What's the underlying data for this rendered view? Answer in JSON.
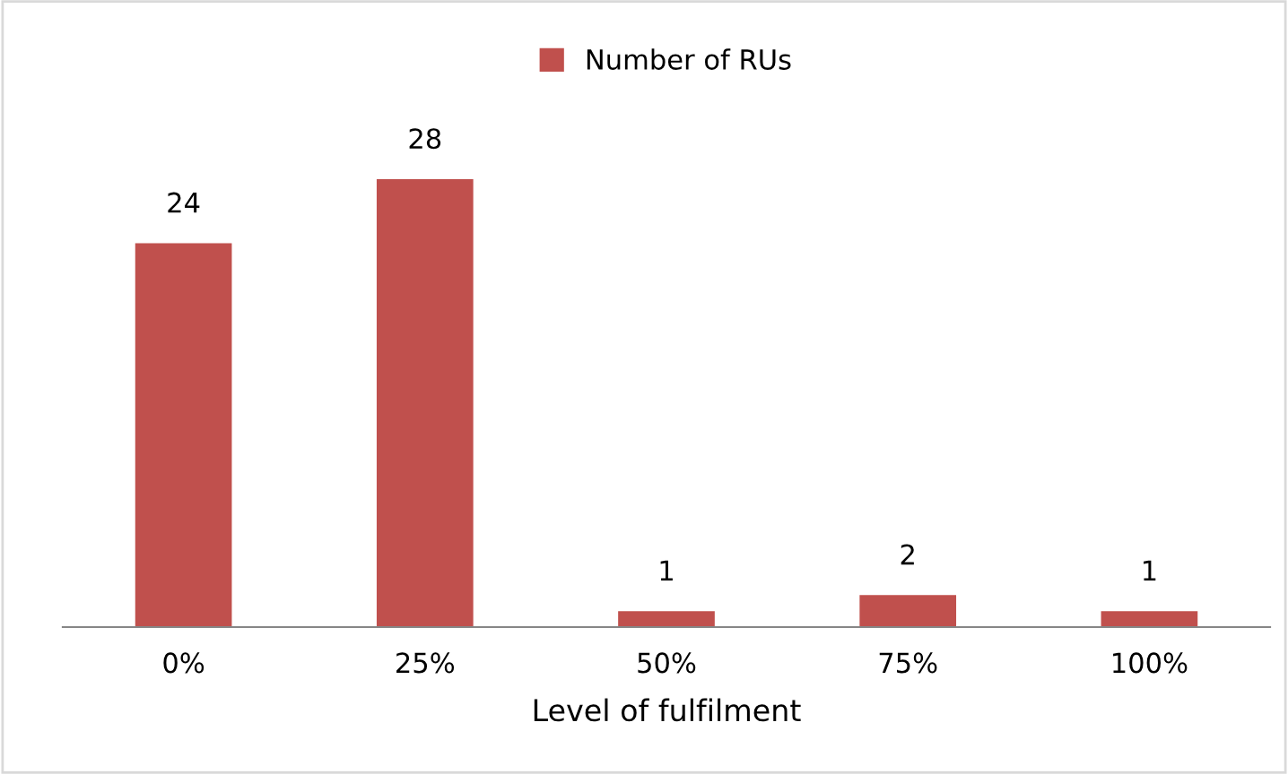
{
  "chart_data": {
    "type": "bar",
    "xlabel": "Level of fulfilment",
    "categories": [
      "0%",
      "25%",
      "50%",
      "75%",
      "100%"
    ],
    "series": [
      {
        "name": "Number of RUs",
        "color": "#c0504d",
        "values": [
          24,
          28,
          1,
          2,
          1
        ]
      }
    ],
    "data_labels": true,
    "legend": "top",
    "grid": false,
    "tick_labels": "x"
  }
}
